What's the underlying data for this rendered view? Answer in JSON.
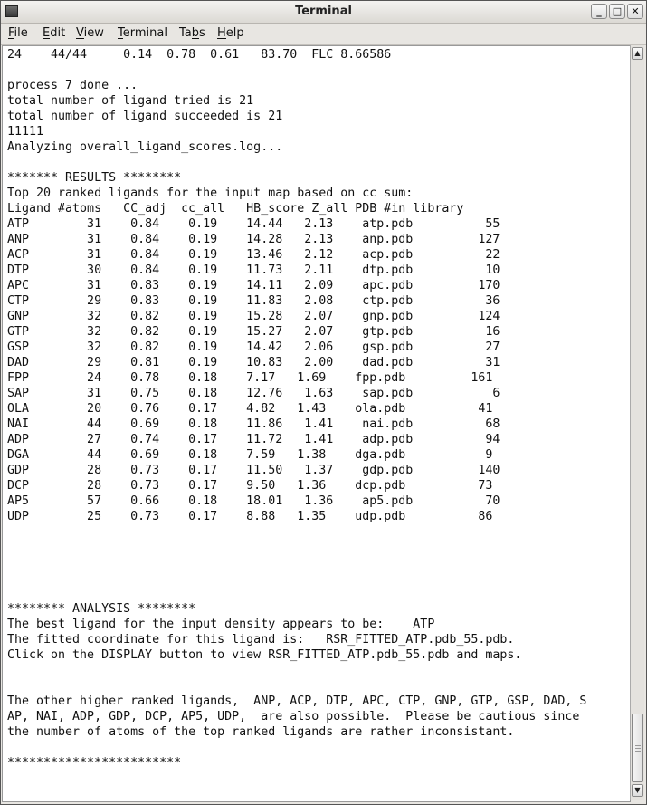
{
  "window": {
    "title": "Terminal",
    "controls": [
      "minimize",
      "maximize",
      "close"
    ]
  },
  "menu": [
    {
      "label": "File",
      "mnemonic": "F",
      "rest": "ile"
    },
    {
      "label": "Edit",
      "mnemonic": "E",
      "rest": "dit"
    },
    {
      "label": "View",
      "mnemonic": "V",
      "rest": "iew"
    },
    {
      "label": "Terminal",
      "mnemonic": "T",
      "rest": "erminal"
    },
    {
      "label": "Tabs",
      "pre": "Ta",
      "mnemonic": "b",
      "rest": "s"
    },
    {
      "label": "Help",
      "mnemonic": "H",
      "rest": "elp"
    }
  ],
  "terminal": {
    "lines": [
      "24    44/44     0.14  0.78  0.61   83.70  FLC 8.66586",
      "",
      "process 7 done ...",
      "total number of ligand tried is 21",
      "total number of ligand succeeded is 21",
      "11111",
      "Analyzing overall_ligand_scores.log...",
      "",
      "******* RESULTS ********",
      "Top 20 ranked ligands for the input map based on cc sum:",
      "Ligand #atoms   CC_adj  cc_all   HB_score Z_all PDB #in library",
      "ATP        31    0.84    0.19    14.44   2.13    atp.pdb          55",
      "ANP        31    0.84    0.19    14.28   2.13    anp.pdb         127",
      "ACP        31    0.84    0.19    13.46   2.12    acp.pdb          22",
      "DTP        30    0.84    0.19    11.73   2.11    dtp.pdb          10",
      "APC        31    0.83    0.19    14.11   2.09    apc.pdb         170",
      "CTP        29    0.83    0.19    11.83   2.08    ctp.pdb          36",
      "GNP        32    0.82    0.19    15.28   2.07    gnp.pdb         124",
      "GTP        32    0.82    0.19    15.27   2.07    gtp.pdb          16",
      "GSP        32    0.82    0.19    14.42   2.06    gsp.pdb          27",
      "DAD        29    0.81    0.19    10.83   2.00    dad.pdb          31",
      "FPP        24    0.78    0.18    7.17   1.69    fpp.pdb         161",
      "SAP        31    0.75    0.18    12.76   1.63    sap.pdb           6",
      "OLA        20    0.76    0.17    4.82   1.43    ola.pdb          41",
      "NAI        44    0.69    0.18    11.86   1.41    nai.pdb          68",
      "ADP        27    0.74    0.17    11.72   1.41    adp.pdb          94",
      "DGA        44    0.69    0.18    7.59   1.38    dga.pdb           9",
      "GDP        28    0.73    0.17    11.50   1.37    gdp.pdb         140",
      "DCP        28    0.73    0.17    9.50   1.36    dcp.pdb          73",
      "AP5        57    0.66    0.18    18.01   1.36    ap5.pdb          70",
      "UDP        25    0.73    0.17    8.88   1.35    udp.pdb          86",
      "",
      "",
      "",
      "",
      "",
      "******** ANALYSIS ********",
      "The best ligand for the input density appears to be:    ATP",
      "The fitted coordinate for this ligand is:   RSR_FITTED_ATP.pdb_55.pdb.",
      "Click on the DISPLAY button to view RSR_FITTED_ATP.pdb_55.pdb and maps.",
      "",
      "",
      "The other higher ranked ligands,  ANP, ACP, DTP, APC, CTP, GNP, GTP, GSP, DAD, S",
      "AP, NAI, ADP, GDP, DCP, AP5, UDP,  are also possible.  Please be cautious since",
      "the number of atoms of the top ranked ligands are rather inconsistant.",
      "",
      "************************"
    ]
  },
  "scrollbar": {
    "position": "bottom"
  }
}
